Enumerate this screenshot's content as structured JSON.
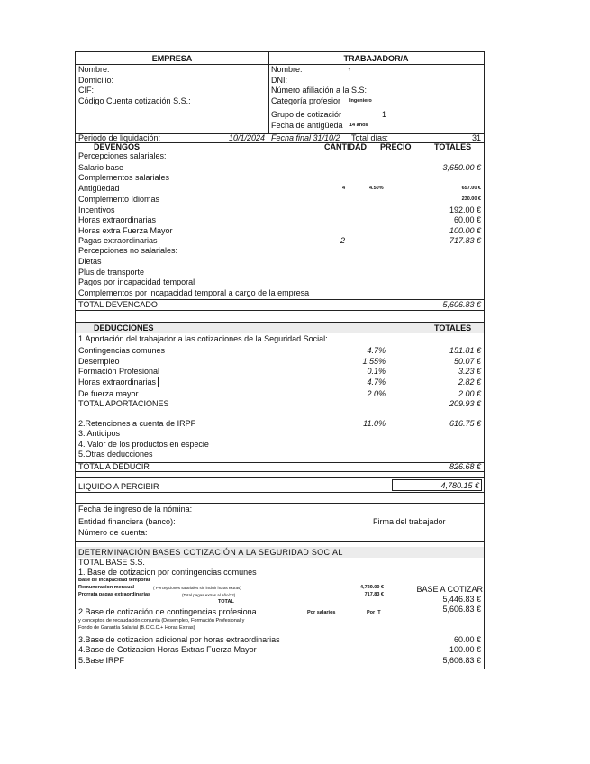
{
  "empresa": {
    "header": "EMPRESA",
    "nombre": "Nombre:",
    "domicilio": "Domicilio:",
    "cif": "CIF:",
    "ccc": "Código Cuenta cotización S.S.:"
  },
  "trabajador": {
    "header": "TRABAJADOR/A",
    "nombre": "Nombre:",
    "nombre_value": "Y",
    "dni": "DNI:",
    "afiliacion": "Número afiliación a la S.S:",
    "categoria": "Categoría profesior",
    "categoria_value": "Ingeniero",
    "grupo": "Grupo de cotizaciór",
    "grupo_value": "1",
    "antiguedad": "Fecha de antigüeda",
    "antiguedad_value": "14 años"
  },
  "periodo": {
    "label": "Periodo de liquidación:",
    "inicio": "10/1/2024",
    "final": "Fecha final 31/10/2",
    "total_dias_label": "Total días:",
    "total_dias": "31"
  },
  "devengos": {
    "header": "DEVENGOS",
    "col_cantidad": "CANTIDAD",
    "col_precio": "PRECIO",
    "col_totales": "TOTALES",
    "salariales_label": "Percepciones salariales:",
    "salario_base": {
      "label": "Salario base",
      "total": "3,650.00 €"
    },
    "complementos_label": "Complementos salariales",
    "antiguedad": {
      "label": "Antigüedad",
      "cantidad": "4",
      "precio": "4.50%",
      "total": "657.00 €"
    },
    "idiomas": {
      "label": "Complemento Idiomas",
      "total": "230.00 €"
    },
    "incentivos": {
      "label": "Incentivos",
      "total": "192.00 €"
    },
    "horas_extra": {
      "label": "Horas extraordinarias",
      "total": "60.00 €"
    },
    "horas_fm": {
      "label": "Horas extra Fuerza Mayor",
      "total": "100.00 €"
    },
    "pagas": {
      "label": "Pagas extraordinarias",
      "cantidad": "2",
      "total": "717.83 €"
    },
    "no_salariales_label": "Percepciones no salariales:",
    "dietas": "Dietas",
    "plus": "Plus de transporte",
    "pagos_it": "Pagos por incapacidad temporal",
    "compl_it": "Complementos por incapacidad temporal a cargo de la empresa",
    "total_label": "TOTAL DEVENGADO",
    "total": "5,606.83 €"
  },
  "deducciones": {
    "header": "DEDUCCIONES",
    "col_totales": "TOTALES",
    "aportacion_label": "1.Aportación del trabajador a las cotizaciones de la Seguridad Social:",
    "items": [
      {
        "label": "Contingencias comunes",
        "pct": "4.7%",
        "total": "151.81 €"
      },
      {
        "label": "Desempleo",
        "pct": "1.55%",
        "total": "50.07 €"
      },
      {
        "label": "Formación Profesional",
        "pct": "0.1%",
        "total": "3.23 €"
      },
      {
        "label": "Horas extraordinarias",
        "pct": "4.7%",
        "total": "2.82 €"
      },
      {
        "label": "De fuerza mayor",
        "pct": "2.0%",
        "total": "2.00 €"
      }
    ],
    "total_aport_label": "TOTAL APORTACIONES",
    "total_aport": "209.93 €",
    "irpf": {
      "label": "2.Retenciones a cuenta de IRPF",
      "pct": "11.0%",
      "total": "616.75 €"
    },
    "anticipos": "3. Anticipos",
    "especie": "4. Valor de los productos en especie",
    "otras": "5.Otras deducciones",
    "total_label": "TOTAL A DEDUCIR",
    "total": "826.68 €"
  },
  "liquido": {
    "label": "LIQUIDO A PERCIBIR",
    "value": "4,780.15 €"
  },
  "pago": {
    "fecha": "Fecha de ingreso de la nómina:",
    "entidad": "Entidad financiera (banco):",
    "cuenta": "Número de cuenta:",
    "firma": "Firma del trabajador"
  },
  "bases": {
    "header": "DETERMINACIÓN BASES COTIZACIÓN A LA SEGURIDAD SOCIAL",
    "total_base": "TOTAL BASE S.S.",
    "b1": "1. Base de cotizacion por contingencias comunes",
    "incap": "Base de Incapacidad temporal",
    "remun": "Remuneracion mensual",
    "remun_note": "( Percepciones salariales sin incluir horas extras)",
    "remun_value": "4,729.00 €",
    "prorrata": "Prorrata pagas extraordinarias",
    "prorrata_note": "(Total pagas extras al año/12)",
    "prorrata_value": "717.83 €",
    "base_a_cotizar": "BASE A COTIZAR",
    "total": "TOTAL",
    "total_value": "5,446.83 €",
    "b2": "2.Base de cotización de contingencias profesiona",
    "por_salarios": "Por salarios",
    "por_it": "Por IT",
    "b2_value": "5,606.83 €",
    "b2_note1": "y conceptos de recaudación conjunta (Desempleo, Formación Profesional y",
    "b2_note2": "Fondo de Garantía Salarial (B.C.C.C.+ Horas Extras)",
    "b3": "3.Base de cotizacion adicional por horas extraordinarias",
    "b3_value": "60.00 €",
    "b4": "4.Base de Cotizacion Horas Extras Fuerza Mayor",
    "b4_value": "100.00 €",
    "b5": "5.Base IRPF",
    "b5_value": "5,606.83 €"
  }
}
